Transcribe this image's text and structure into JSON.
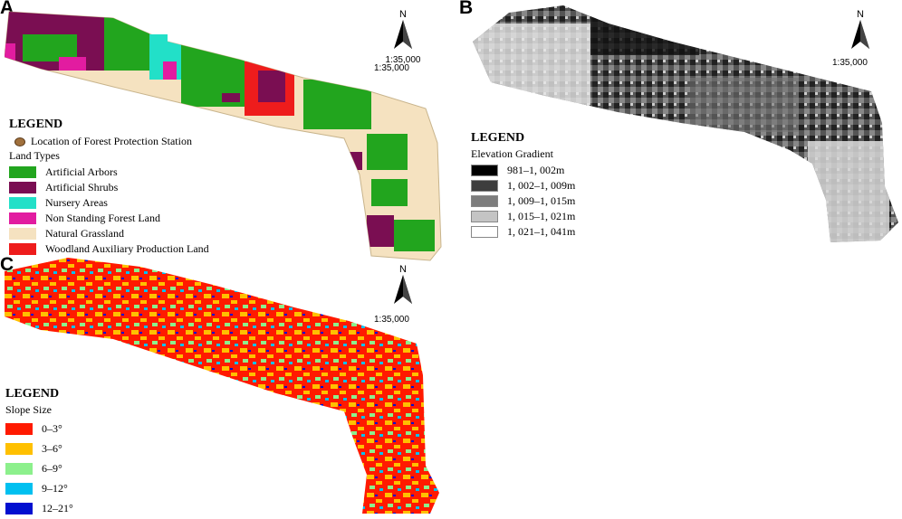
{
  "panels": {
    "a": {
      "label": "A",
      "north": "N",
      "scale": "1:35,000",
      "legend": {
        "title": "LEGEND",
        "station": "Location of Forest Protection Station",
        "subtitle": "Land Types",
        "items": [
          {
            "label": "Artificial Arbors",
            "color": "#22a51e"
          },
          {
            "label": "Artificial Shrubs",
            "color": "#7a0e52"
          },
          {
            "label": "Nursery Areas",
            "color": "#22e0c8"
          },
          {
            "label": "Non Standing Forest Land",
            "color": "#e21ca0"
          },
          {
            "label": "Natural Grassland",
            "color": "#f5e2c0"
          },
          {
            "label": "Woodland Auxiliary Production Land",
            "color": "#ee1c1c"
          }
        ]
      }
    },
    "b": {
      "label": "B",
      "north": "N",
      "scale": "1:35,000",
      "legend": {
        "title": "LEGEND",
        "subtitle": "Elevation Gradient",
        "items": [
          {
            "label": "981–1, 002m",
            "color": "#000000"
          },
          {
            "label": "1, 002–1, 009m",
            "color": "#3d3d3d"
          },
          {
            "label": "1, 009–1, 015m",
            "color": "#7d7d7d"
          },
          {
            "label": "1, 015–1, 021m",
            "color": "#c4c4c4"
          },
          {
            "label": "1, 021–1, 041m",
            "color": "#ffffff"
          }
        ]
      }
    },
    "c": {
      "label": "C",
      "north": "N",
      "scale": "1:35,000",
      "legend": {
        "title": "LEGEND",
        "subtitle": "Slope Size",
        "items": [
          {
            "label": "0–3°",
            "color": "#ff1a00"
          },
          {
            "label": "3–6°",
            "color": "#ffc000"
          },
          {
            "label": "6–9°",
            "color": "#8cf08c"
          },
          {
            "label": "9–12°",
            "color": "#00c0f0"
          },
          {
            "label": "12–21°",
            "color": "#0010d0"
          }
        ]
      }
    }
  }
}
